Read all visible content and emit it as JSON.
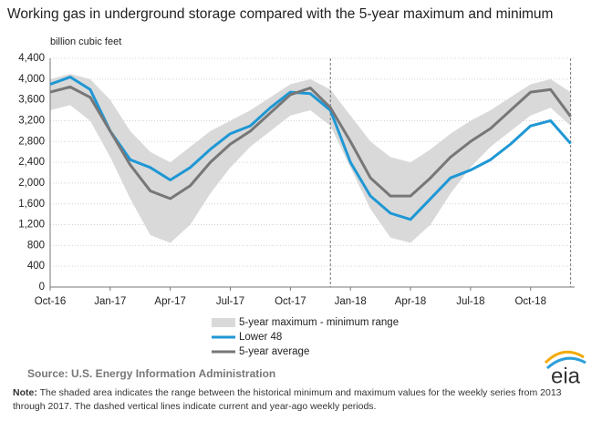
{
  "chart_data": {
    "type": "line",
    "title": "Working gas in underground  storage compared with the 5-year maximum and minimum",
    "y_label": "billion cubic feet",
    "x": [
      "2016-10",
      "2016-11",
      "2016-12",
      "2017-01",
      "2017-02",
      "2017-03",
      "2017-04",
      "2017-05",
      "2017-06",
      "2017-07",
      "2017-08",
      "2017-09",
      "2017-10",
      "2017-11",
      "2017-12",
      "2018-01",
      "2018-02",
      "2018-03",
      "2018-04",
      "2018-05",
      "2018-06",
      "2018-07",
      "2018-08",
      "2018-09",
      "2018-10",
      "2018-11",
      "2018-12"
    ],
    "xlim": [
      "2016-10",
      "2018-12"
    ],
    "xticks": [
      {
        "value": "2016-10",
        "label": "Oct-16"
      },
      {
        "value": "2017-01",
        "label": "Jan-17"
      },
      {
        "value": "2017-04",
        "label": "Apr-17"
      },
      {
        "value": "2017-07",
        "label": "Jul-17"
      },
      {
        "value": "2017-10",
        "label": "Oct-17"
      },
      {
        "value": "2018-01",
        "label": "Jan-18"
      },
      {
        "value": "2018-04",
        "label": "Apr-18"
      },
      {
        "value": "2018-07",
        "label": "Jul-18"
      },
      {
        "value": "2018-10",
        "label": "Oct-18"
      }
    ],
    "ylim": [
      0,
      4400
    ],
    "yticks": [
      0,
      400,
      800,
      {
        "value": 1200,
        "label": "1,200"
      },
      {
        "value": 1600,
        "label": "1,600"
      },
      {
        "value": 2000,
        "label": "2,000"
      },
      {
        "value": 2400,
        "label": "2,400"
      },
      {
        "value": 2800,
        "label": "2,800"
      },
      {
        "value": 3200,
        "label": "3,200"
      },
      {
        "value": 3600,
        "label": "3,600"
      },
      {
        "value": 4000,
        "label": "4,000"
      },
      {
        "value": 4400,
        "label": "4,400"
      }
    ],
    "grid": true,
    "range": {
      "name": "5-year maximum - minimum range",
      "color": "#d9d9d9",
      "max": [
        4000,
        4100,
        4000,
        3600,
        3000,
        2600,
        2400,
        2700,
        3000,
        3200,
        3400,
        3650,
        3900,
        4000,
        3800,
        3300,
        2800,
        2500,
        2400,
        2650,
        2950,
        3200,
        3400,
        3650,
        3900,
        4000,
        3750
      ],
      "min": [
        3400,
        3500,
        3200,
        2500,
        1700,
        1000,
        850,
        1200,
        1800,
        2300,
        2700,
        3000,
        3300,
        3400,
        3100,
        2300,
        1500,
        950,
        850,
        1200,
        1800,
        2300,
        2700,
        3000,
        3300,
        3450,
        3100
      ]
    },
    "series": [
      {
        "name": "Lower 48",
        "color": "#1f97d4",
        "values": [
          3900,
          4040,
          3800,
          3000,
          2450,
          2300,
          2060,
          2300,
          2650,
          2950,
          3100,
          3450,
          3750,
          3720,
          3400,
          2400,
          1750,
          1420,
          1300,
          1700,
          2100,
          2250,
          2450,
          2750,
          3100,
          3200,
          2760
        ]
      },
      {
        "name": "5-year average",
        "color": "#777777",
        "values": [
          3750,
          3850,
          3650,
          3000,
          2350,
          1850,
          1700,
          1950,
          2400,
          2750,
          3000,
          3350,
          3700,
          3830,
          3450,
          2800,
          2100,
          1750,
          1750,
          2100,
          2500,
          2800,
          3050,
          3400,
          3750,
          3800,
          3280
        ]
      }
    ],
    "dashed_lines": [
      "2017-12",
      "2018-12"
    ],
    "source": "Source:  U.S. Energy Information Administration",
    "note_label": "Note:",
    "note": " The shaded area indicates the range between the historical minimum and maximum values for the weekly series from 2013 through 2017. The dashed vertical lines indicate current and year-ago weekly periods.",
    "logo": "eia"
  }
}
